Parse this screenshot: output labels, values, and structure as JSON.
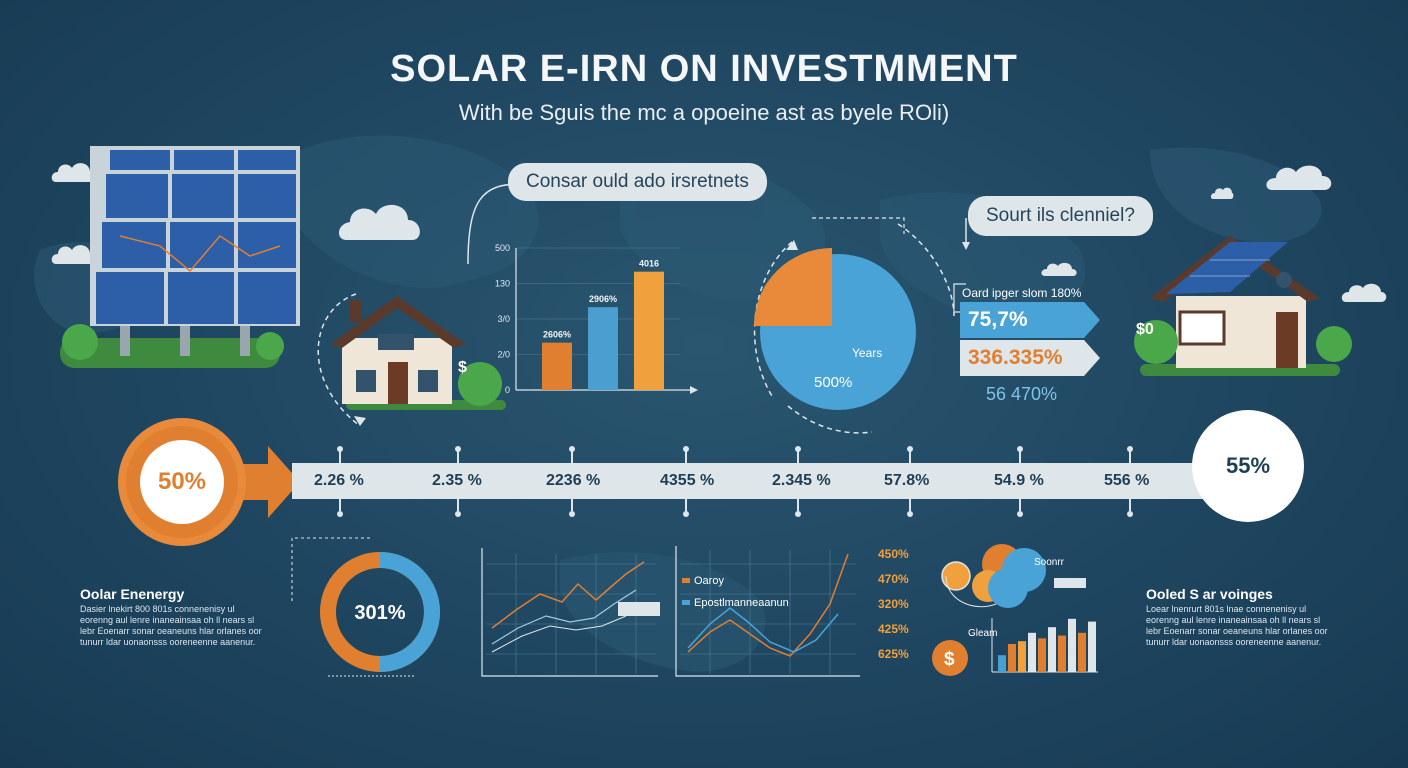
{
  "header": {
    "title": "SOLAR E-IRN ON INVESTMMENT",
    "subtitle": "With be Sguis the mc a opoeine ast as byele ROli)"
  },
  "bubbles": {
    "left": "Consar ould ado irsretnets",
    "right": "Sourt ils clenniel?"
  },
  "bar_chart": {
    "y_ticks": [
      "500",
      "130",
      "3/0",
      "2/0",
      "0"
    ],
    "bars": [
      {
        "label": "2606%",
        "value": 120,
        "color": "#e07f2f"
      },
      {
        "label": "2906%",
        "value": 210,
        "color": "#4a9fd0"
      },
      {
        "label": "4016",
        "value": 300,
        "color": "#f0a03c"
      }
    ],
    "ymax": 360
  },
  "pie": {
    "label_years": "Years",
    "label_value": "500%",
    "orange_fraction": 0.25
  },
  "stats": {
    "title": "Oard ipger slom   180%",
    "row1": "75,7%",
    "row2": "336.335%",
    "extra": "56 470%"
  },
  "timeline": {
    "start": "50%",
    "end": "55%",
    "values": [
      "2.26 %",
      "2.35 %",
      "2236 %",
      "4355 %",
      "2.345 %",
      "57.8%",
      "54.9 %",
      "556 %"
    ]
  },
  "left_text": {
    "title": "Oolar Enenergy",
    "body": "Dasier lnekirt 800 801s connenenisy ul eorenng aul lenre inaneainsaa oh ll nears sl lebr Eoenarr sonar oeaneuns hlar orlanes oor tunurr ldar uonaonsss ooreneenne aanenur."
  },
  "right_text": {
    "title": "Ooled S ar voinges",
    "body": "Loear lnenrurt 801s lnae connenenisy ul eorenng aul lenre inaneainsaa oh ll nears sl lebr Eoenarr sonar oeaneuns hlar orlanes oor tunurr ldar uonaonsss ooreneenne aanenur."
  },
  "donut": {
    "value": "301%",
    "fraction": 0.5
  },
  "line_chart_b": {
    "legend": [
      "Oaroy",
      "Epostlmanneaanun"
    ],
    "pct_list": [
      "450%",
      "470%",
      "320%",
      "425%",
      "625%"
    ]
  },
  "cluster": {
    "label1": "Soonrr",
    "label2": "Gleam"
  },
  "mini_bars": [
    {
      "value": 0.3,
      "color": "#4a9fd0"
    },
    {
      "value": 0.5,
      "color": "#e07f2f"
    },
    {
      "value": 0.55,
      "color": "#f0a03c"
    },
    {
      "value": 0.7,
      "color": "#dfe6ea"
    },
    {
      "value": 0.6,
      "color": "#e07f2f"
    },
    {
      "value": 0.8,
      "color": "#dfe6ea"
    },
    {
      "value": 0.65,
      "color": "#e07f2f"
    },
    {
      "value": 0.95,
      "color": "#dfe6ea"
    },
    {
      "value": 0.7,
      "color": "#e07f2f"
    },
    {
      "value": 0.9,
      "color": "#dfe6ea"
    }
  ],
  "colors": {
    "orange": "#e07f2f",
    "blue": "#4a9fd0",
    "light": "#dfe6ea",
    "bg": "#1f4660"
  }
}
